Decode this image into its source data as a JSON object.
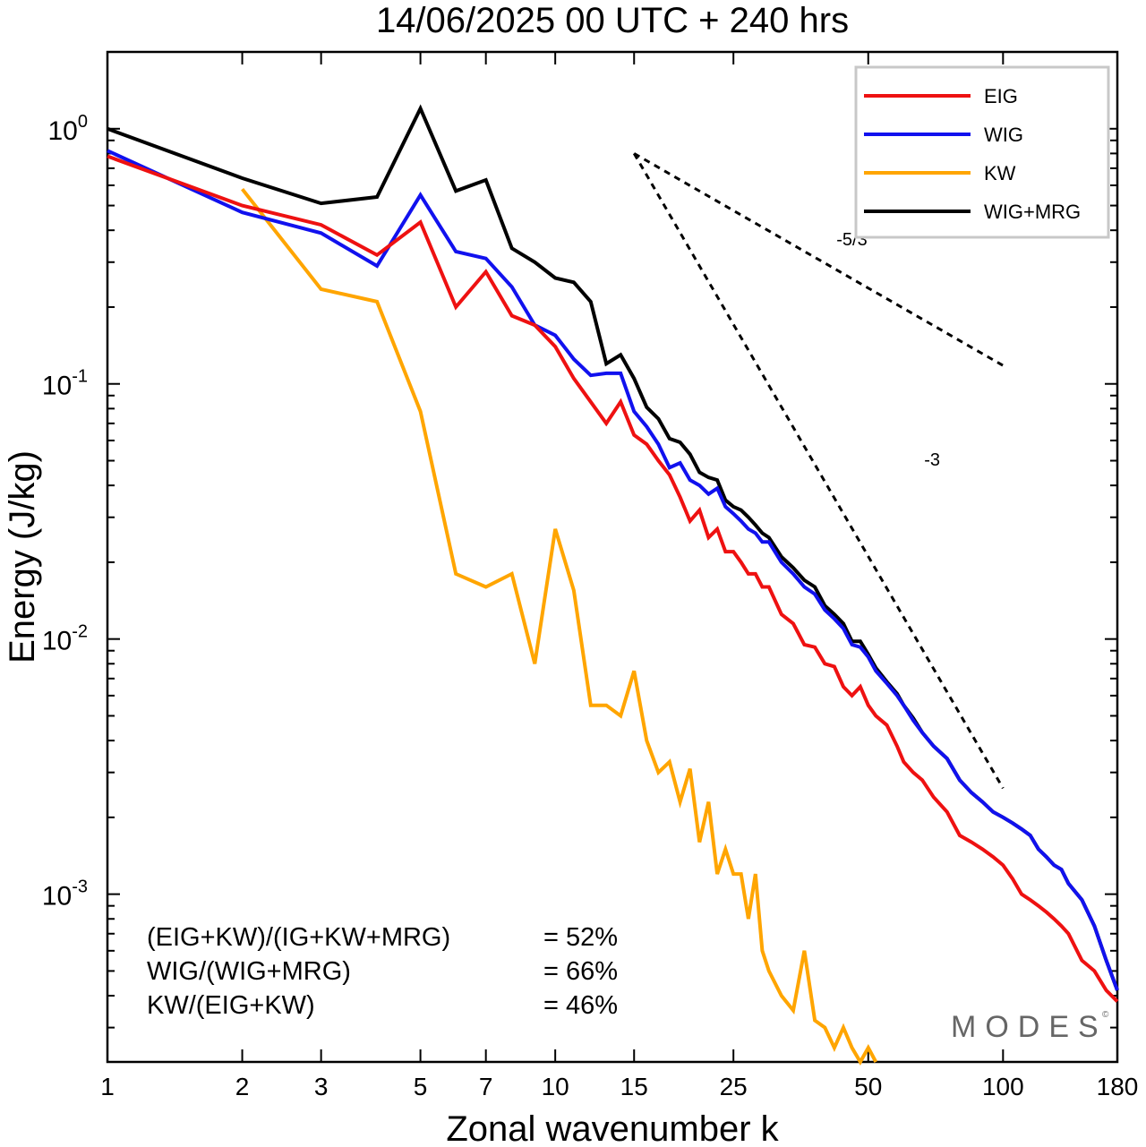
{
  "chart_data": {
    "type": "line",
    "title": "14/06/2025  00 UTC  + 240 hrs",
    "xlabel": "Zonal wavenumber k",
    "ylabel": "Energy (J/kg)",
    "xscale": "log",
    "yscale": "log",
    "xlim": [
      1,
      180
    ],
    "ylim": [
      0.00022,
      2.0
    ],
    "x_ticks": [
      "1",
      "2",
      "3",
      "5",
      "7",
      "10",
      "15",
      "25",
      "50",
      "100",
      "180"
    ],
    "y_ticks": [
      {
        "base": "10",
        "exp": "0"
      },
      {
        "base": "10",
        "exp": "-1"
      },
      {
        "base": "10",
        "exp": "-2"
      },
      {
        "base": "10",
        "exp": "-3"
      }
    ],
    "legend_position": "top-right",
    "grid": false,
    "colors": {
      "EIG": "#ee1111",
      "WIG": "#1111ee",
      "KW": "#ffa500",
      "WIG+MRG": "#000000"
    },
    "series": [
      {
        "name": "EIG",
        "x": [
          1,
          2,
          3,
          4,
          5,
          6,
          7,
          8,
          9,
          10,
          11,
          12,
          13,
          14,
          15,
          16,
          17,
          18,
          19,
          20,
          21,
          22,
          23,
          24,
          25,
          26,
          27,
          28,
          29,
          30,
          32,
          34,
          36,
          38,
          40,
          42,
          44,
          46,
          48,
          50,
          52,
          55,
          58,
          60,
          63,
          66,
          70,
          75,
          80,
          85,
          90,
          95,
          100,
          105,
          110,
          115,
          120,
          125,
          130,
          135,
          140,
          150,
          160,
          170,
          180
        ],
        "y": [
          0.78,
          0.5,
          0.42,
          0.32,
          0.43,
          0.2,
          0.275,
          0.185,
          0.17,
          0.14,
          0.105,
          0.085,
          0.07,
          0.085,
          0.063,
          0.058,
          0.05,
          0.044,
          0.036,
          0.029,
          0.032,
          0.025,
          0.027,
          0.022,
          0.022,
          0.02,
          0.018,
          0.018,
          0.016,
          0.016,
          0.0125,
          0.0115,
          0.0095,
          0.0093,
          0.008,
          0.0078,
          0.0065,
          0.006,
          0.0065,
          0.0055,
          0.005,
          0.0046,
          0.0038,
          0.0033,
          0.003,
          0.0028,
          0.0024,
          0.0021,
          0.0017,
          0.0016,
          0.0015,
          0.0014,
          0.0013,
          0.00115,
          0.001,
          0.00095,
          0.0009,
          0.00085,
          0.0008,
          0.00075,
          0.0007,
          0.00055,
          0.0005,
          0.00042,
          0.00038
        ]
      },
      {
        "name": "WIG",
        "x": [
          1,
          2,
          3,
          4,
          5,
          6,
          7,
          8,
          9,
          10,
          11,
          12,
          13,
          14,
          15,
          16,
          17,
          18,
          19,
          20,
          21,
          22,
          23,
          24,
          25,
          26,
          27,
          28,
          29,
          30,
          32,
          34,
          36,
          38,
          40,
          42,
          44,
          46,
          48,
          50,
          52,
          55,
          58,
          60,
          63,
          66,
          70,
          75,
          80,
          85,
          90,
          95,
          100,
          105,
          110,
          115,
          120,
          125,
          130,
          135,
          140,
          150,
          160,
          170,
          180
        ],
        "y": [
          0.82,
          0.47,
          0.39,
          0.29,
          0.55,
          0.33,
          0.31,
          0.24,
          0.17,
          0.155,
          0.125,
          0.108,
          0.11,
          0.11,
          0.078,
          0.068,
          0.058,
          0.047,
          0.049,
          0.042,
          0.04,
          0.037,
          0.039,
          0.033,
          0.031,
          0.029,
          0.027,
          0.026,
          0.024,
          0.024,
          0.02,
          0.018,
          0.016,
          0.015,
          0.013,
          0.012,
          0.011,
          0.0095,
          0.0093,
          0.0085,
          0.0075,
          0.0067,
          0.006,
          0.0055,
          0.0048,
          0.0043,
          0.0038,
          0.0034,
          0.0028,
          0.0025,
          0.0023,
          0.0021,
          0.002,
          0.0019,
          0.0018,
          0.0017,
          0.0015,
          0.0014,
          0.0013,
          0.00125,
          0.0011,
          0.00095,
          0.00075,
          0.00055,
          0.00042
        ]
      },
      {
        "name": "KW",
        "x": [
          2,
          3,
          4,
          5,
          6,
          7,
          8,
          9,
          10,
          11,
          12,
          13,
          14,
          15,
          16,
          17,
          18,
          19,
          20,
          21,
          22,
          23,
          24,
          25,
          26,
          27,
          28,
          29,
          30,
          32,
          34,
          36,
          38,
          40,
          42,
          44,
          46,
          48,
          50,
          52
        ],
        "y": [
          0.58,
          0.235,
          0.21,
          0.078,
          0.018,
          0.016,
          0.018,
          0.008,
          0.027,
          0.0155,
          0.0055,
          0.0055,
          0.005,
          0.0075,
          0.004,
          0.003,
          0.0033,
          0.0023,
          0.0031,
          0.0016,
          0.0023,
          0.0012,
          0.0015,
          0.0012,
          0.0012,
          0.0008,
          0.0012,
          0.0006,
          0.0005,
          0.0004,
          0.00035,
          0.0006,
          0.00032,
          0.0003,
          0.00025,
          0.0003,
          0.00025,
          0.00022,
          0.00025,
          0.00022
        ]
      },
      {
        "name": "WIG+MRG",
        "x": [
          1,
          2,
          3,
          4,
          5,
          6,
          7,
          8,
          9,
          10,
          11,
          12,
          13,
          14,
          15,
          16,
          17,
          18,
          19,
          20,
          21,
          22,
          23,
          24,
          25,
          26,
          27,
          28,
          29,
          30,
          32,
          34,
          36,
          38,
          40,
          42,
          44,
          46,
          48,
          50,
          52,
          55,
          58,
          60,
          63,
          66,
          70,
          75,
          80,
          85,
          90,
          95,
          100,
          105,
          110,
          115,
          120,
          125,
          130,
          135,
          140,
          150,
          160,
          170,
          180
        ],
        "y": [
          1.0,
          0.64,
          0.51,
          0.54,
          1.2,
          0.57,
          0.63,
          0.34,
          0.3,
          0.26,
          0.25,
          0.21,
          0.12,
          0.13,
          0.105,
          0.081,
          0.073,
          0.061,
          0.059,
          0.053,
          0.045,
          0.043,
          0.042,
          0.035,
          0.033,
          0.032,
          0.03,
          0.028,
          0.026,
          0.025,
          0.021,
          0.019,
          0.017,
          0.016,
          0.0135,
          0.0125,
          0.0115,
          0.0098,
          0.0098,
          0.0087,
          0.0077,
          0.0068,
          0.0061,
          0.0055,
          0.0049,
          0.0043,
          0.0038,
          0.0034,
          0.0028,
          0.0025,
          0.0023,
          0.0021,
          0.002,
          0.0019,
          0.0018,
          0.0017,
          0.0015,
          0.0014,
          0.0013,
          0.00125,
          0.0011,
          0.00095,
          0.00075,
          0.00055,
          0.00042
        ]
      }
    ],
    "slope_lines": [
      {
        "label": "-5/3",
        "x": [
          15,
          100
        ],
        "y": [
          0.8,
          0.118
        ]
      },
      {
        "label": "-3",
        "x": [
          15,
          100
        ],
        "y": [
          0.8,
          0.0026
        ]
      }
    ],
    "annotations": [
      {
        "label": "(EIG+KW)/(IG+KW+MRG)",
        "value": "= 52%"
      },
      {
        "label": "WIG/(WIG+MRG)",
        "value": "= 66%"
      },
      {
        "label": "KW/(EIG+KW)",
        "value": "= 46%"
      }
    ],
    "brand": "MODES",
    "brand_mark": "©"
  }
}
